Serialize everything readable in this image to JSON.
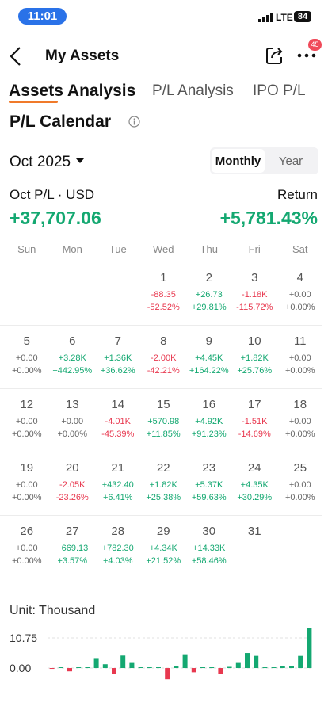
{
  "status_bar": {
    "time": "11:01",
    "network": "LTE",
    "battery": "84"
  },
  "header": {
    "title": "My Assets",
    "badge": "45"
  },
  "tabs": [
    "Assets Analysis",
    "P/L Analysis",
    "IPO P/L"
  ],
  "section_title": "P/L Calendar",
  "month": "Oct 2025",
  "toggle": [
    "Monthly",
    "Year"
  ],
  "summary": {
    "pl_label": "Oct P/L · USD",
    "return_label": "Return",
    "pl_value": "+37,707.06",
    "return_value": "+5,781.43%"
  },
  "weekdays": [
    "Sun",
    "Mon",
    "Tue",
    "Wed",
    "Thu",
    "Fri",
    "Sat"
  ],
  "weeks": [
    [
      null,
      null,
      null,
      {
        "day": 1,
        "pl": "-88.35",
        "ret": "-52.52%"
      },
      {
        "day": 2,
        "pl": "+26.73",
        "ret": "+29.81%"
      },
      {
        "day": 3,
        "pl": "-1.18K",
        "ret": "-115.72%"
      },
      {
        "day": 4,
        "pl": "+0.00",
        "ret": "+0.00%"
      }
    ],
    [
      {
        "day": 5,
        "pl": "+0.00",
        "ret": "+0.00%"
      },
      {
        "day": 6,
        "pl": "+3.28K",
        "ret": "+442.95%"
      },
      {
        "day": 7,
        "pl": "+1.36K",
        "ret": "+36.62%"
      },
      {
        "day": 8,
        "pl": "-2.00K",
        "ret": "-42.21%"
      },
      {
        "day": 9,
        "pl": "+4.45K",
        "ret": "+164.22%"
      },
      {
        "day": 10,
        "pl": "+1.82K",
        "ret": "+25.76%"
      },
      {
        "day": 11,
        "pl": "+0.00",
        "ret": "+0.00%"
      }
    ],
    [
      {
        "day": 12,
        "pl": "+0.00",
        "ret": "+0.00%"
      },
      {
        "day": 13,
        "pl": "+0.00",
        "ret": "+0.00%"
      },
      {
        "day": 14,
        "pl": "-4.01K",
        "ret": "-45.39%"
      },
      {
        "day": 15,
        "pl": "+570.98",
        "ret": "+11.85%"
      },
      {
        "day": 16,
        "pl": "+4.92K",
        "ret": "+91.23%"
      },
      {
        "day": 17,
        "pl": "-1.51K",
        "ret": "-14.69%"
      },
      {
        "day": 18,
        "pl": "+0.00",
        "ret": "+0.00%"
      }
    ],
    [
      {
        "day": 19,
        "pl": "+0.00",
        "ret": "+0.00%"
      },
      {
        "day": 20,
        "pl": "-2.05K",
        "ret": "-23.26%"
      },
      {
        "day": 21,
        "pl": "+432.40",
        "ret": "+6.41%"
      },
      {
        "day": 22,
        "pl": "+1.82K",
        "ret": "+25.38%"
      },
      {
        "day": 23,
        "pl": "+5.37K",
        "ret": "+59.63%"
      },
      {
        "day": 24,
        "pl": "+4.35K",
        "ret": "+30.29%"
      },
      {
        "day": 25,
        "pl": "+0.00",
        "ret": "+0.00%"
      }
    ],
    [
      {
        "day": 26,
        "pl": "+0.00",
        "ret": "+0.00%"
      },
      {
        "day": 27,
        "pl": "+669.13",
        "ret": "+3.57%"
      },
      {
        "day": 28,
        "pl": "+782.30",
        "ret": "+4.03%"
      },
      {
        "day": 29,
        "pl": "+4.34K",
        "ret": "+21.52%"
      },
      {
        "day": 30,
        "pl": "+14.33K",
        "ret": "+58.46%"
      },
      {
        "day": 31
      },
      null
    ]
  ],
  "chart_data": {
    "type": "bar",
    "unit_label": "Unit: Thousand",
    "values": [
      -0.09,
      0.03,
      -1.18,
      0,
      0,
      3.28,
      1.36,
      -2.0,
      4.45,
      1.82,
      0,
      0,
      0,
      -4.01,
      0.57,
      4.92,
      -1.51,
      0,
      0,
      -2.05,
      0.43,
      1.82,
      5.37,
      4.35,
      0,
      0,
      0.67,
      0.78,
      4.34,
      14.33
    ],
    "positive_color": "#14a871",
    "negative_color": "#e8384f",
    "ylim": [
      -4.8,
      15
    ],
    "yticks": [
      {
        "value": 0,
        "label": "0.00"
      },
      10.75
    ],
    "grid": true
  }
}
